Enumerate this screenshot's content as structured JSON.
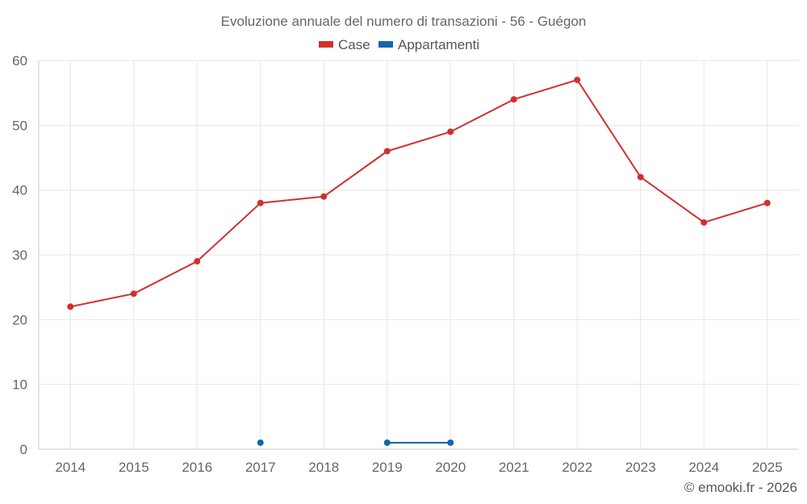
{
  "chart_data": {
    "type": "line",
    "title": "Evoluzione annuale del numero di transazioni - 56 - Guégon",
    "xlabel": "",
    "ylabel": "",
    "categories": [
      "2014",
      "2015",
      "2016",
      "2017",
      "2018",
      "2019",
      "2020",
      "2021",
      "2022",
      "2023",
      "2024",
      "2025"
    ],
    "ylim": [
      0,
      60
    ],
    "yticks": [
      0,
      10,
      20,
      30,
      40,
      50,
      60
    ],
    "grid": true,
    "legend_position": "top-center",
    "series": [
      {
        "name": "Case",
        "color": "#d32f2f",
        "values": [
          22,
          24,
          29,
          38,
          39,
          46,
          49,
          54,
          57,
          42,
          35,
          38
        ]
      },
      {
        "name": "Appartamenti",
        "color": "#1565a8",
        "values": [
          null,
          null,
          null,
          1,
          null,
          1,
          1,
          null,
          null,
          null,
          null,
          null
        ]
      }
    ]
  },
  "credit": "© emooki.fr - 2026"
}
